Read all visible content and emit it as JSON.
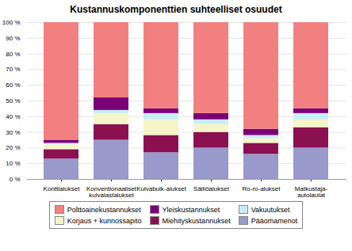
{
  "chart_data": {
    "type": "bar",
    "title": "Kustannuskomponenttien suhteelliset osuudet",
    "stacked": true,
    "categories": [
      "Konttialukset",
      "Konventionaaliset\nkulvalastalukset",
      "Kulvabulk-alukset",
      "Säiliöalukset",
      "Ro-ro-alukset",
      "Matkustaja-\nautolautat"
    ],
    "series": [
      {
        "name": "Pääomamenot",
        "color": "#9999CC",
        "values": [
          13,
          25,
          17,
          20,
          16,
          20
        ]
      },
      {
        "name": "Miehityskustannukset",
        "color": "#8B1050",
        "values": [
          6,
          10,
          11,
          10,
          7,
          13
        ]
      },
      {
        "name": "Korjaus + kunnossapito",
        "color": "#F5F5C8",
        "values": [
          3,
          7,
          10,
          5,
          3,
          5
        ]
      },
      {
        "name": "Vakuutukset",
        "color": "#C8EEF5",
        "values": [
          1,
          2,
          4,
          3,
          2,
          4
        ]
      },
      {
        "name": "Yleiskustannukset",
        "color": "#7B0078",
        "values": [
          2,
          8,
          3,
          4,
          4,
          3
        ]
      },
      {
        "name": "Polttoainekustannukset",
        "color": "#F28080",
        "values": [
          75,
          48,
          55,
          58,
          68,
          55
        ]
      }
    ],
    "ylim": [
      0,
      100
    ],
    "yticks": [
      {
        "value": 0,
        "label": "0 %"
      },
      {
        "value": 10,
        "label": "10 %"
      },
      {
        "value": 20,
        "label": "20 %"
      },
      {
        "value": 30,
        "label": "30 %"
      },
      {
        "value": 40,
        "label": "40 %"
      },
      {
        "value": 50,
        "label": "50 %"
      },
      {
        "value": 60,
        "label": "60 %"
      },
      {
        "value": 70,
        "label": "70 %"
      },
      {
        "value": 80,
        "label": "80 %"
      },
      {
        "value": 90,
        "label": "90 %"
      },
      {
        "value": 100,
        "label": "100 %"
      }
    ],
    "grid": true,
    "legend": "bottom"
  }
}
